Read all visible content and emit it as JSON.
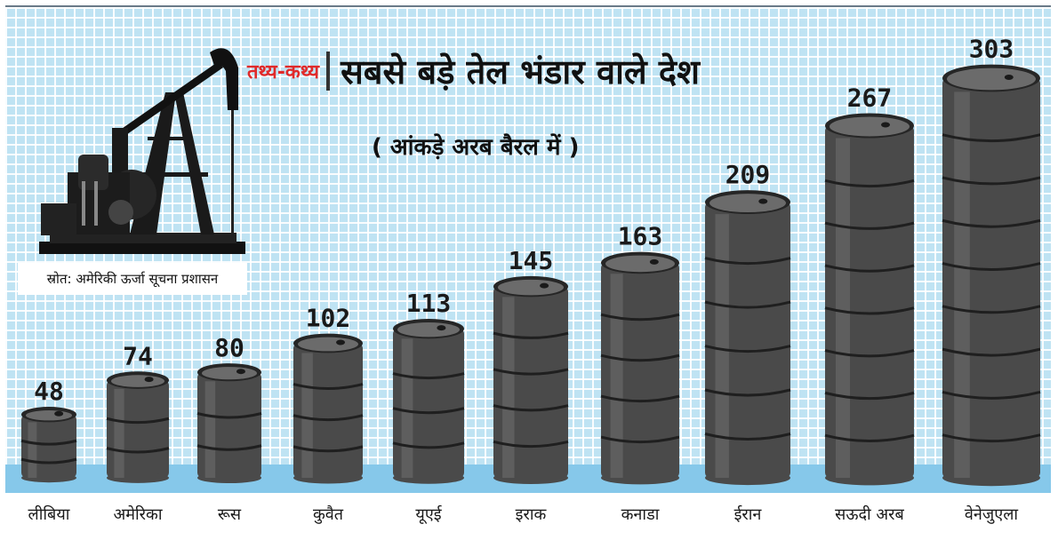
{
  "header": {
    "tag": "तथ्य-कथ्य",
    "title": "सबसे बड़े तेल भंडार वाले देश",
    "subtitle": "( आंकड़े अरब बैरल में )"
  },
  "source": "स्रोत: अमेरिकी ऊर्जा सूचना प्रशासन",
  "colors": {
    "background": "#bfe3f3",
    "floor": "#86c8ea",
    "barrel": "#4a4a4a",
    "title_tag": "#e02a2a"
  },
  "icons": [
    "oil-pump-jack-icon"
  ],
  "chart_data": {
    "type": "bar",
    "mark": "oil-barrel",
    "categories": [
      "लीबिया",
      "अमेरिका",
      "रूस",
      "कुवैत",
      "यूएई",
      "इराक",
      "कनाडा",
      "ईरान",
      "सऊदी अरब",
      "वेनेजुएला"
    ],
    "values": [
      48,
      74,
      80,
      102,
      113,
      145,
      163,
      209,
      267,
      303
    ],
    "value_labels": [
      "48",
      "74",
      "80",
      "102",
      "113",
      "145",
      "163",
      "209",
      "267",
      "303"
    ],
    "title": "सबसे बड़े तेल भंडार वाले देश",
    "subtitle": "( आंकड़े अरब बैरल में )",
    "grid": true,
    "legend": "none"
  }
}
